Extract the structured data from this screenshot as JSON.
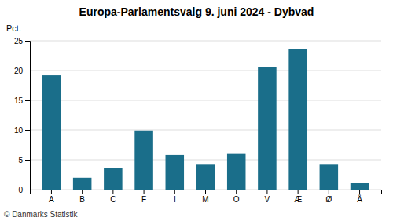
{
  "chart_data": {
    "type": "bar",
    "title": "Europa-Parlamentsvalg 9. juni 2024 - Dybvad",
    "ylabel": "Pct.",
    "footer": "© Danmarks Statistik",
    "categories": [
      "A",
      "B",
      "C",
      "F",
      "I",
      "M",
      "O",
      "V",
      "Æ",
      "Ø",
      "Å"
    ],
    "values": [
      19.2,
      2.0,
      3.6,
      9.9,
      5.8,
      4.3,
      6.1,
      20.6,
      23.6,
      4.3,
      1.1
    ],
    "color": "#1a6e8a",
    "ylim": [
      0,
      25
    ],
    "yticks": [
      0,
      5,
      10,
      15,
      20,
      25
    ],
    "grid": true
  }
}
